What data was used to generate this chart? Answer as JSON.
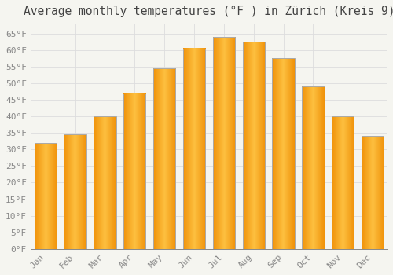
{
  "title": "Average monthly temperatures (°F ) in Zürich (Kreis 9)",
  "months": [
    "Jan",
    "Feb",
    "Mar",
    "Apr",
    "May",
    "Jun",
    "Jul",
    "Aug",
    "Sep",
    "Oct",
    "Nov",
    "Dec"
  ],
  "values": [
    32,
    34.5,
    40,
    47,
    54.5,
    60.5,
    64,
    62.5,
    57.5,
    49,
    40,
    34
  ],
  "bar_color_center": "#FDC040",
  "bar_color_edge": "#F0920A",
  "bar_outline_color": "#AAAAAA",
  "background_color": "#F5F5F0",
  "plot_bg_color": "#F5F5F0",
  "grid_color": "#DDDDDD",
  "tick_label_color": "#888888",
  "title_color": "#444444",
  "ylim": [
    0,
    68
  ],
  "yticks": [
    0,
    5,
    10,
    15,
    20,
    25,
    30,
    35,
    40,
    45,
    50,
    55,
    60,
    65
  ],
  "title_fontsize": 10.5,
  "tick_fontsize": 8,
  "bar_width": 0.75
}
